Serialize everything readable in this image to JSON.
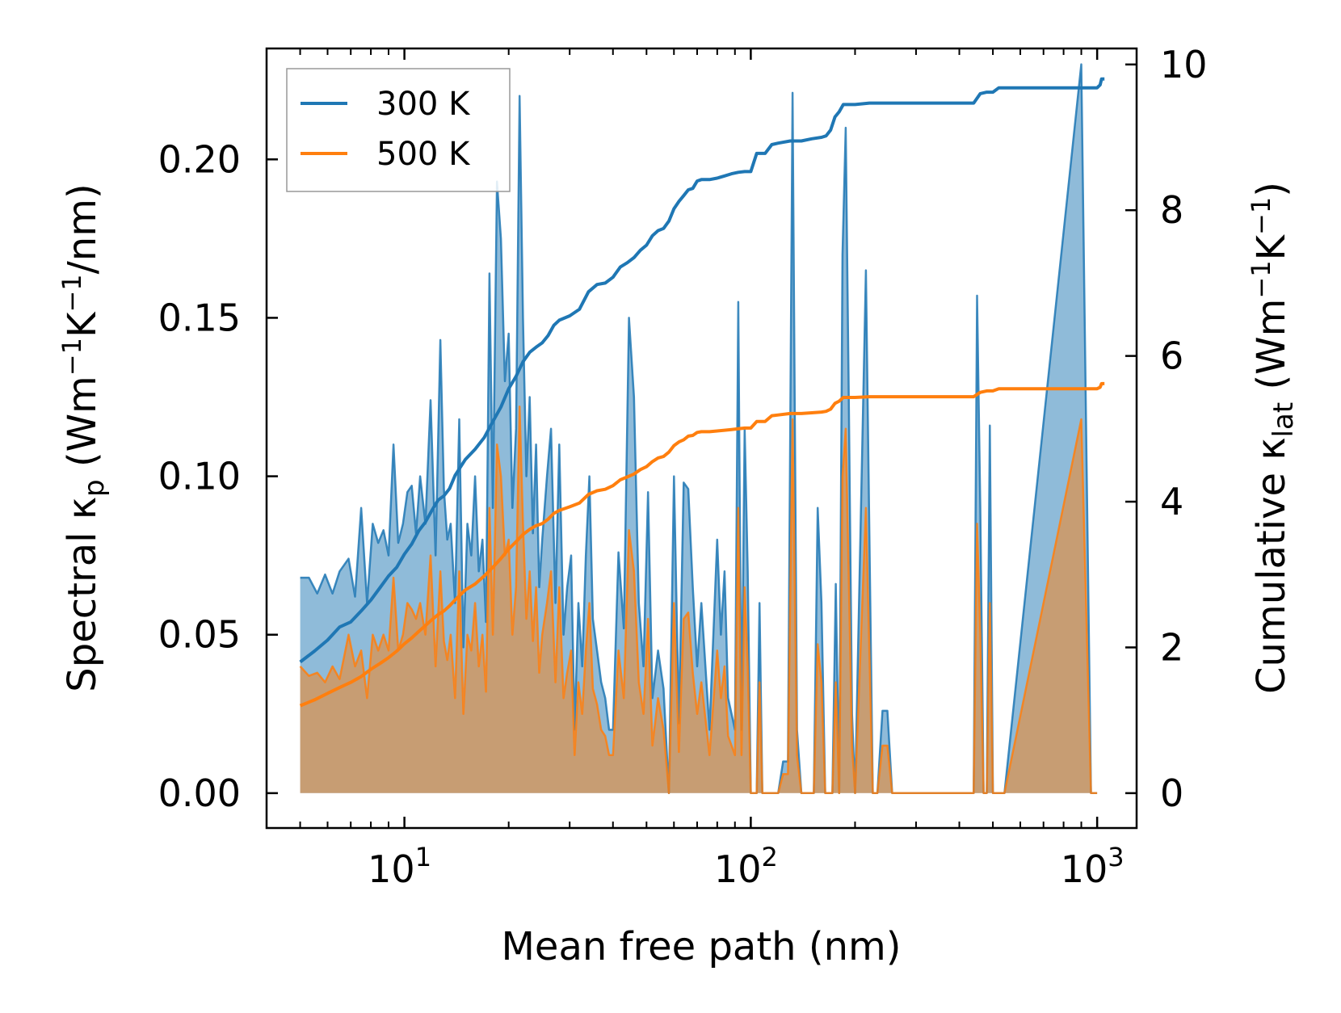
{
  "chart_data": {
    "type": "line",
    "xscale": "log",
    "xlabel": "Mean free path (nm)",
    "ylabel_left": {
      "main": "Spectral κ",
      "sub": "p",
      "unit_open": " (Wm",
      "sup1": "−1",
      "mid": "K",
      "sup2": "−1",
      "unit_close": "/nm)"
    },
    "ylabel_right": {
      "main": "Cumulative κ",
      "sub": "lat",
      "unit_open": " (Wm",
      "sup1": "−1",
      "mid": "K",
      "sup2": "−1",
      "unit_close": ")"
    },
    "xlim": [
      4.0,
      1300
    ],
    "ylim_left": [
      -0.011,
      0.235
    ],
    "ylim_right": [
      -0.4783,
      10.2196
    ],
    "x_ticks": [
      {
        "value": 10,
        "base": "10",
        "exp": "1"
      },
      {
        "value": 100,
        "base": "10",
        "exp": "2"
      },
      {
        "value": 1000,
        "base": "10",
        "exp": "3"
      }
    ],
    "y_ticks_left": [
      "0.00",
      "0.05",
      "0.10",
      "0.15",
      "0.20"
    ],
    "y_tick_values_left": [
      0,
      0.05,
      0.1,
      0.15,
      0.2
    ],
    "y_ticks_right": [
      "0",
      "2",
      "4",
      "6",
      "8",
      "10"
    ],
    "y_tick_values_right": [
      0,
      2,
      4,
      6,
      8,
      10
    ],
    "legend": {
      "position": "upper-left",
      "entries": [
        {
          "label": "300 K",
          "color": "#1f77b4"
        },
        {
          "label": "500 K",
          "color": "#ff7f0e"
        }
      ]
    },
    "series": [
      {
        "name": "300 K",
        "color": "#1f77b4",
        "spectral_x": [
          5,
          5.3,
          5.6,
          5.9,
          6.2,
          6.5,
          6.9,
          7.2,
          7.5,
          7.8,
          8.1,
          8.4,
          8.7,
          9,
          9.3,
          9.6,
          9.9,
          10.2,
          10.5,
          10.8,
          11.1,
          11.5,
          11.9,
          12.3,
          12.7,
          13,
          13.3,
          13.6,
          14,
          14.4,
          14.8,
          15.2,
          15.6,
          16,
          16.4,
          16.8,
          17.2,
          17.6,
          18,
          18.5,
          19,
          19.5,
          20,
          20.5,
          21,
          21.5,
          22,
          22.5,
          23,
          23.5,
          24,
          24.5,
          25,
          25.8,
          26.5,
          27.3,
          28,
          28.8,
          29.5,
          30.3,
          31,
          31.8,
          32.6,
          33.4,
          34.2,
          35,
          36,
          37,
          38,
          39,
          40,
          41.5,
          43,
          44.5,
          46,
          47.5,
          49,
          50.5,
          52,
          54,
          56,
          58,
          60,
          62,
          64,
          66,
          68,
          70,
          72,
          76,
          80,
          82,
          84,
          86,
          88,
          90,
          92,
          94,
          96,
          98,
          100,
          102,
          104,
          106,
          108,
          112,
          116,
          120,
          124,
          128,
          132,
          136,
          140,
          144,
          148,
          152,
          156,
          160,
          164,
          168,
          172,
          176,
          180,
          184,
          188,
          192,
          196,
          200,
          215,
          225,
          232,
          240,
          248,
          256,
          264,
          300,
          420,
          440,
          450,
          460,
          470,
          480,
          490,
          500,
          510,
          520,
          540,
          900,
          960,
          990,
          1000,
          1010,
          1020,
          1030,
          1040,
          1050
        ],
        "spectral_y": [
          0.068,
          0.068,
          0.063,
          0.069,
          0.063,
          0.07,
          0.074,
          0.062,
          0.09,
          0.06,
          0.085,
          0.079,
          0.083,
          0.075,
          0.11,
          0.079,
          0.085,
          0.095,
          0.097,
          0.082,
          0.1,
          0.085,
          0.124,
          0.075,
          0.143,
          0.096,
          0.08,
          0.085,
          0.06,
          0.118,
          0.046,
          0.085,
          0.075,
          0.1,
          0.07,
          0.08,
          0.054,
          0.164,
          0.09,
          0.193,
          0.175,
          0.13,
          0.145,
          0.09,
          0.115,
          0.22,
          0.15,
          0.1,
          0.125,
          0.082,
          0.11,
          0.065,
          0.08,
          0.1,
          0.115,
          0.06,
          0.11,
          0.05,
          0.065,
          0.075,
          0.02,
          0.06,
          0.04,
          0.075,
          0.1,
          0.055,
          0.045,
          0.035,
          0.03,
          0.02,
          0.02,
          0.076,
          0.052,
          0.15,
          0.125,
          0.06,
          0.04,
          0.095,
          0.03,
          0.045,
          0.033,
          0,
          0.1,
          0.022,
          0.098,
          0.096,
          0.065,
          0.04,
          0.06,
          0.02,
          0.08,
          0.05,
          0.07,
          0.03,
          0.025,
          0.02,
          0.155,
          0.02,
          0.115,
          0.07,
          0,
          0,
          0,
          0.06,
          0,
          0,
          0,
          0,
          0.01,
          0.01,
          0.221,
          0.02,
          0,
          0,
          0,
          0,
          0.09,
          0.06,
          0,
          0,
          0,
          0.066,
          0,
          0.17,
          0.21,
          0.12,
          0.025,
          0,
          0.165,
          0,
          0,
          0.026,
          0.026,
          0,
          0,
          0,
          0,
          0,
          0.157,
          0.09,
          0,
          0,
          0.116,
          0,
          0,
          0,
          0,
          0.23,
          0,
          0,
          0
        ],
        "cumulative_x": [
          5,
          5.5,
          6,
          6.5,
          7,
          7.5,
          8,
          8.5,
          9,
          9.5,
          10,
          10.5,
          11,
          11.5,
          12,
          12.5,
          13,
          13.5,
          14,
          15,
          16,
          17,
          18,
          19,
          20,
          21,
          22,
          23,
          24,
          25,
          26,
          27,
          28,
          30,
          32,
          34,
          36,
          38,
          40,
          42,
          44,
          46,
          48,
          50,
          52,
          54,
          56,
          58,
          60,
          62,
          64,
          66,
          68,
          70,
          72,
          76,
          80,
          84,
          88,
          92,
          96,
          100,
          104,
          106,
          110,
          115,
          120,
          130,
          140,
          150,
          160,
          165,
          170,
          175,
          180,
          185,
          190,
          195,
          200,
          220,
          250,
          280,
          300,
          320,
          340,
          360,
          380,
          400,
          420,
          440,
          460,
          480,
          500,
          520,
          550,
          700,
          900,
          980,
          1000,
          1020,
          1030,
          1040,
          1050
        ],
        "cumulative_y": [
          1.8,
          1.95,
          2.1,
          2.28,
          2.35,
          2.5,
          2.65,
          2.82,
          2.98,
          3.1,
          3.28,
          3.42,
          3.6,
          3.72,
          3.88,
          4.02,
          4.08,
          4.18,
          4.36,
          4.58,
          4.72,
          4.88,
          5.1,
          5.3,
          5.55,
          5.72,
          5.92,
          6.05,
          6.12,
          6.18,
          6.28,
          6.42,
          6.49,
          6.55,
          6.64,
          6.88,
          6.98,
          7.0,
          7.08,
          7.22,
          7.28,
          7.35,
          7.45,
          7.52,
          7.65,
          7.72,
          7.75,
          7.85,
          8.02,
          8.12,
          8.2,
          8.28,
          8.3,
          8.4,
          8.42,
          8.42,
          8.44,
          8.47,
          8.5,
          8.52,
          8.53,
          8.53,
          8.78,
          8.78,
          8.78,
          8.9,
          8.92,
          8.95,
          8.95,
          8.98,
          9.0,
          9.02,
          9.1,
          9.28,
          9.35,
          9.45,
          9.45,
          9.45,
          9.45,
          9.47,
          9.47,
          9.47,
          9.47,
          9.47,
          9.47,
          9.47,
          9.47,
          9.47,
          9.47,
          9.47,
          9.6,
          9.62,
          9.62,
          9.68,
          9.68,
          9.68,
          9.68,
          9.68,
          9.68,
          9.72,
          9.8,
          9.8,
          9.8
        ]
      },
      {
        "name": "500 K",
        "color": "#ff7f0e",
        "spectral_x": [
          5,
          5.3,
          5.6,
          5.9,
          6.2,
          6.5,
          6.9,
          7.2,
          7.5,
          7.8,
          8.1,
          8.4,
          8.7,
          9,
          9.3,
          9.6,
          9.9,
          10.2,
          10.5,
          10.8,
          11.1,
          11.5,
          11.9,
          12.3,
          12.7,
          13,
          13.3,
          13.6,
          14,
          14.4,
          14.8,
          15.2,
          15.6,
          16,
          16.4,
          16.8,
          17.2,
          17.6,
          18,
          18.5,
          19,
          19.5,
          20,
          20.5,
          21,
          21.5,
          22,
          22.5,
          23,
          23.5,
          24,
          24.5,
          25,
          25.8,
          26.5,
          27.3,
          28,
          28.8,
          29.5,
          30.3,
          31,
          31.8,
          32.6,
          33.4,
          34.2,
          35,
          36,
          37,
          38,
          39,
          40,
          41.5,
          43,
          44.5,
          46,
          47.5,
          49,
          50.5,
          52,
          54,
          56,
          58,
          60,
          62,
          64,
          66,
          68,
          70,
          72,
          76,
          80,
          82,
          84,
          86,
          88,
          90,
          92,
          94,
          96,
          98,
          100,
          102,
          104,
          106,
          108,
          112,
          116,
          120,
          124,
          128,
          132,
          136,
          140,
          144,
          148,
          152,
          156,
          160,
          164,
          168,
          172,
          176,
          180,
          184,
          188,
          192,
          196,
          200,
          215,
          225,
          232,
          240,
          248,
          256,
          264,
          300,
          420,
          440,
          450,
          460,
          470,
          480,
          490,
          500,
          510,
          520,
          540,
          900,
          960,
          990,
          1000,
          1010,
          1020,
          1030,
          1040,
          1050
        ],
        "spectral_y": [
          0.04,
          0.037,
          0.038,
          0.035,
          0.04,
          0.036,
          0.05,
          0.04,
          0.045,
          0.03,
          0.05,
          0.045,
          0.05,
          0.045,
          0.068,
          0.045,
          0.05,
          0.06,
          0.058,
          0.055,
          0.06,
          0.05,
          0.075,
          0.04,
          0.07,
          0.048,
          0.042,
          0.05,
          0.03,
          0.07,
          0.025,
          0.05,
          0.045,
          0.06,
          0.04,
          0.05,
          0.032,
          0.09,
          0.05,
          0.11,
          0.1,
          0.075,
          0.08,
          0.05,
          0.065,
          0.122,
          0.085,
          0.055,
          0.07,
          0.048,
          0.065,
          0.038,
          0.05,
          0.06,
          0.07,
          0.035,
          0.065,
          0.03,
          0.038,
          0.045,
          0.012,
          0.035,
          0.025,
          0.045,
          0.06,
          0.033,
          0.028,
          0.02,
          0.018,
          0.012,
          0.012,
          0.045,
          0.03,
          0.083,
          0.07,
          0.035,
          0.025,
          0.055,
          0.015,
          0.03,
          0.02,
          0,
          0.06,
          0.013,
          0.055,
          0.057,
          0.038,
          0.025,
          0.035,
          0.012,
          0.045,
          0.03,
          0.04,
          0.018,
          0.015,
          0.012,
          0.09,
          0.012,
          0.065,
          0.04,
          0,
          0,
          0,
          0.035,
          0,
          0,
          0,
          0,
          0.006,
          0.006,
          0.118,
          0.012,
          0,
          0,
          0,
          0,
          0.047,
          0.035,
          0,
          0,
          0,
          0.035,
          0,
          0.1,
          0.115,
          0.065,
          0.015,
          0,
          0.09,
          0,
          0,
          0.015,
          0.015,
          0,
          0,
          0,
          0,
          0,
          0.085,
          0.05,
          0,
          0,
          0.06,
          0,
          0,
          0,
          0,
          0.118,
          0,
          0,
          0
        ],
        "cumulative_x": [
          5,
          5.5,
          6,
          6.5,
          7,
          7.5,
          8,
          8.5,
          9,
          9.5,
          10,
          10.5,
          11,
          11.5,
          12,
          12.5,
          13,
          13.5,
          14,
          15,
          16,
          17,
          18,
          19,
          20,
          21,
          22,
          23,
          24,
          25,
          26,
          27,
          28,
          30,
          32,
          34,
          36,
          38,
          40,
          42,
          44,
          46,
          48,
          50,
          52,
          54,
          56,
          58,
          60,
          62,
          64,
          66,
          68,
          70,
          72,
          76,
          80,
          84,
          88,
          92,
          96,
          100,
          104,
          106,
          110,
          115,
          120,
          130,
          140,
          150,
          160,
          165,
          170,
          175,
          180,
          185,
          190,
          195,
          200,
          220,
          250,
          280,
          300,
          320,
          340,
          360,
          380,
          400,
          420,
          440,
          460,
          480,
          500,
          520,
          550,
          700,
          900,
          980,
          1000,
          1020,
          1030,
          1040,
          1050
        ],
        "cumulative_y": [
          1.2,
          1.28,
          1.37,
          1.45,
          1.52,
          1.6,
          1.7,
          1.78,
          1.86,
          1.95,
          2.05,
          2.13,
          2.22,
          2.3,
          2.38,
          2.45,
          2.5,
          2.57,
          2.65,
          2.79,
          2.87,
          2.98,
          3.1,
          3.22,
          3.35,
          3.45,
          3.55,
          3.62,
          3.67,
          3.7,
          3.76,
          3.84,
          3.88,
          3.93,
          3.98,
          4.1,
          4.15,
          4.17,
          4.22,
          4.3,
          4.34,
          4.38,
          4.44,
          4.48,
          4.55,
          4.6,
          4.62,
          4.68,
          4.77,
          4.82,
          4.85,
          4.9,
          4.91,
          4.95,
          4.96,
          4.96,
          4.97,
          4.98,
          4.99,
          5.0,
          5.01,
          5.01,
          5.1,
          5.1,
          5.1,
          5.18,
          5.19,
          5.21,
          5.21,
          5.22,
          5.23,
          5.24,
          5.27,
          5.35,
          5.38,
          5.43,
          5.43,
          5.43,
          5.43,
          5.44,
          5.44,
          5.44,
          5.44,
          5.44,
          5.44,
          5.44,
          5.44,
          5.44,
          5.44,
          5.44,
          5.5,
          5.52,
          5.52,
          5.55,
          5.55,
          5.55,
          5.55,
          5.55,
          5.55,
          5.57,
          5.62,
          5.62,
          5.62
        ]
      }
    ]
  }
}
